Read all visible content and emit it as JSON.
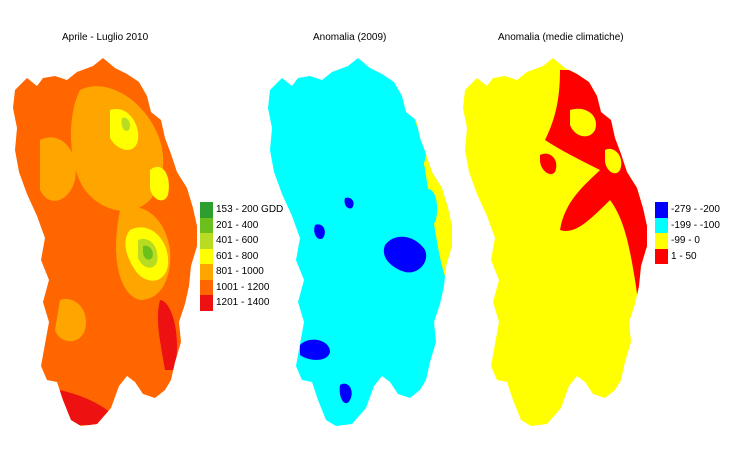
{
  "maps": [
    {
      "title": "Aprile - Luglio 2010"
    },
    {
      "title": "Anomalia (2009)"
    },
    {
      "title": "Anomalia (medie climatiche)"
    }
  ],
  "legend_gdd": [
    {
      "label": "153 - 200 GDD",
      "color": "#2e9e2e"
    },
    {
      "label": "201 - 400",
      "color": "#6cc01c"
    },
    {
      "label": "401 - 600",
      "color": "#b8dc22"
    },
    {
      "label": "601 - 800",
      "color": "#ffff00"
    },
    {
      "label": "801 - 1000",
      "color": "#ffa500"
    },
    {
      "label": "1001 - 1200",
      "color": "#ff6600"
    },
    {
      "label": "1201 - 1400",
      "color": "#ee1111"
    }
  ],
  "legend_anomaly": [
    {
      "label": "-279 - -200",
      "color": "#0000ff"
    },
    {
      "label": "-199 - -100",
      "color": "#00ffff"
    },
    {
      "label": "-99 - 0",
      "color": "#ffff00"
    },
    {
      "label": "1 - 50",
      "color": "#ff0000"
    }
  ],
  "colors": {
    "map1_base": "#ff6600",
    "map2_base": "#00ffff",
    "map3_base": "#ffff00"
  }
}
